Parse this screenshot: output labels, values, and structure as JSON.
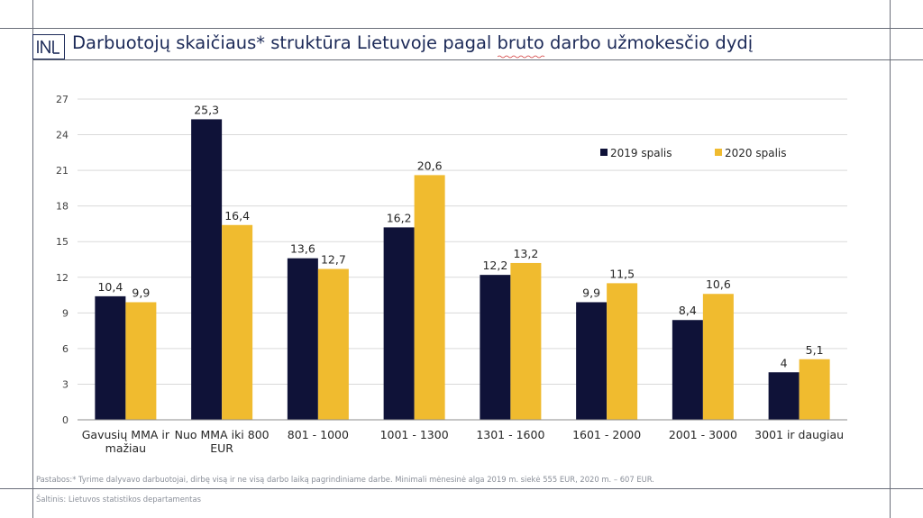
{
  "slide": {
    "title": "Darbuotojų skaičiaus* struktūra Lietuvoje pagal bruto darbo užmokesčio dydį",
    "note": "Pastabos:* Tyrime dalyvavo darbuotojai, dirbę visą ir ne visą darbo laiką pagrindiniame darbe. Minimali mėnesinė alga 2019 m. siekė 555 EUR, 2020 m. – 607 EUR.",
    "source": "Šaltinis: Lietuvos statistikos departamentas",
    "logo": "logo-icon"
  },
  "chart_data": {
    "type": "bar",
    "categories": [
      [
        "Gavusių MMA ir",
        "mažiau"
      ],
      [
        "Nuo MMA iki 800",
        "EUR"
      ],
      [
        "801 - 1000"
      ],
      [
        "1001 - 1300"
      ],
      [
        "1301 - 1600"
      ],
      [
        "1601 - 2000"
      ],
      [
        "2001 - 3000"
      ],
      [
        "3001 ir daugiau"
      ]
    ],
    "series": [
      {
        "name": "2019 spalis",
        "color": "#0f1238",
        "values": [
          10.4,
          25.3,
          13.6,
          16.2,
          12.2,
          9.9,
          8.4,
          4.0
        ]
      },
      {
        "name": "2020 spalis",
        "color": "#f0bb2f",
        "values": [
          9.9,
          16.4,
          12.7,
          20.6,
          13.2,
          11.5,
          10.6,
          5.1
        ]
      }
    ],
    "data_labels": [
      [
        "10,4",
        "25,3",
        "13,6",
        "16,2",
        "12,2",
        "9,9",
        "8,4",
        "4"
      ],
      [
        "9,9",
        "16,4",
        "12,7",
        "20,6",
        "13,2",
        "11,5",
        "10,6",
        "5,1"
      ]
    ],
    "y_ticks": [
      "0",
      "3",
      "6",
      "9",
      "12",
      "15",
      "18",
      "21",
      "24",
      "27"
    ],
    "ylim": [
      0,
      27
    ],
    "grid": true,
    "legend_position": "top-right"
  }
}
